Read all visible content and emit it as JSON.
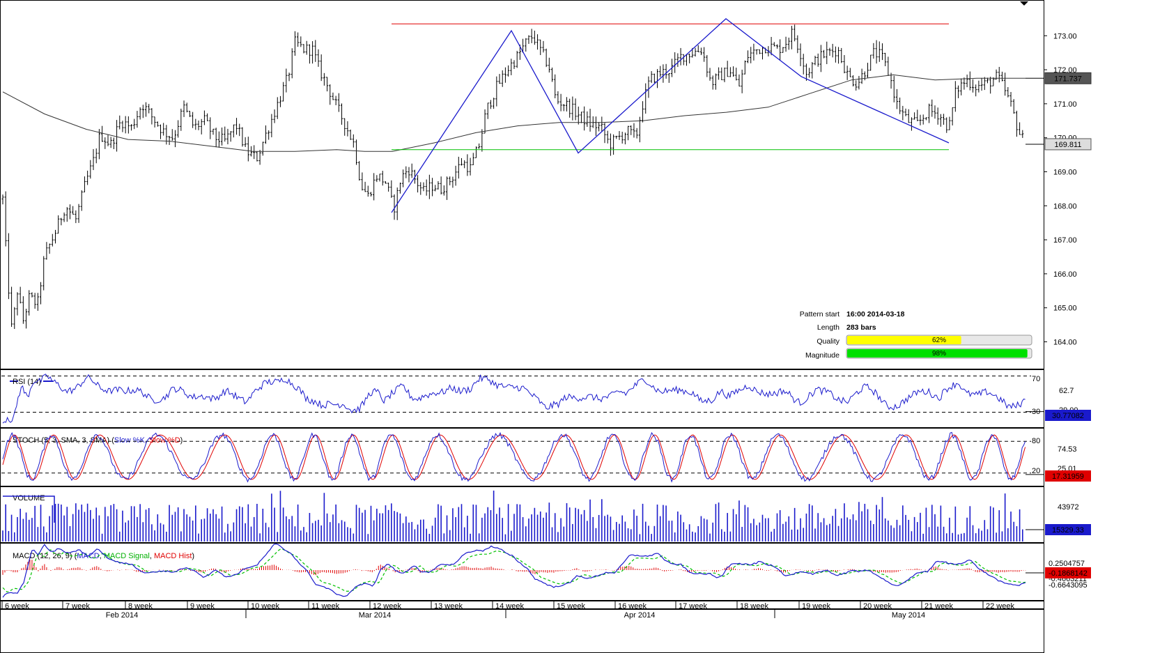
{
  "chart_data": {
    "type": "candlestick",
    "main": {
      "price_ylim": [
        163.6,
        173.6
      ],
      "y_ticks": [
        "173.00",
        "172.00",
        "171.00",
        "170.00",
        "169.00",
        "168.00",
        "167.00",
        "166.00",
        "165.00",
        "164.00"
      ],
      "current_price": "169.811",
      "ma_price": "171.737",
      "resistance_level": 173.35,
      "support_level": 169.65,
      "pattern_points": [
        {
          "bar": 0.0,
          "price": 167.8
        },
        {
          "bar": 0.215,
          "price": 173.15
        },
        {
          "bar": 0.335,
          "price": 169.55
        },
        {
          "bar": 0.6,
          "price": 173.5
        },
        {
          "bar": 0.735,
          "price": 171.8
        },
        {
          "bar": 1.0,
          "price": 169.85
        }
      ],
      "price_path": [
        [
          0,
          168.2
        ],
        [
          6,
          166.2
        ],
        [
          13,
          164.3
        ],
        [
          21,
          165.5
        ],
        [
          29,
          164.6
        ],
        [
          38,
          165.3
        ],
        [
          50,
          165.1
        ],
        [
          60,
          166.5
        ],
        [
          75,
          167.2
        ],
        [
          90,
          168.0
        ],
        [
          105,
          167.6
        ],
        [
          118,
          168.6
        ],
        [
          130,
          169.3
        ],
        [
          140,
          170.1
        ],
        [
          155,
          169.8
        ],
        [
          170,
          170.5
        ],
        [
          185,
          170.3
        ],
        [
          200,
          171.0
        ],
        [
          215,
          170.6
        ],
        [
          230,
          170.2
        ],
        [
          245,
          170.0
        ],
        [
          260,
          170.9
        ],
        [
          275,
          170.3
        ],
        [
          290,
          170.5
        ],
        [
          305,
          170.0
        ],
        [
          320,
          169.9
        ],
        [
          335,
          170.4
        ],
        [
          350,
          169.6
        ],
        [
          365,
          169.4
        ],
        [
          380,
          170.2
        ],
        [
          395,
          171.0
        ],
        [
          410,
          171.8
        ],
        [
          420,
          172.8
        ],
        [
          433,
          172.6
        ],
        [
          445,
          172.6
        ],
        [
          455,
          172.0
        ],
        [
          465,
          171.6
        ],
        [
          478,
          171.0
        ],
        [
          492,
          170.4
        ],
        [
          505,
          169.8
        ],
        [
          515,
          168.6
        ],
        [
          525,
          168.3
        ],
        [
          538,
          168.9
        ],
        [
          550,
          168.7
        ],
        [
          562,
          167.9
        ],
        [
          572,
          168.8
        ],
        [
          583,
          169.1
        ],
        [
          595,
          168.7
        ],
        [
          605,
          168.4
        ],
        [
          618,
          168.6
        ],
        [
          630,
          168.5
        ],
        [
          645,
          168.8
        ],
        [
          660,
          169.3
        ],
        [
          672,
          169.1
        ],
        [
          685,
          169.8
        ],
        [
          695,
          170.8
        ],
        [
          710,
          171.5
        ],
        [
          725,
          172.0
        ],
        [
          740,
          172.4
        ],
        [
          752,
          172.8
        ],
        [
          762,
          173.0
        ],
        [
          772,
          172.6
        ],
        [
          785,
          172.1
        ],
        [
          795,
          171.1
        ],
        [
          808,
          171.0
        ],
        [
          820,
          170.8
        ],
        [
          832,
          170.6
        ],
        [
          845,
          170.4
        ],
        [
          860,
          170.3
        ],
        [
          872,
          169.8
        ],
        [
          885,
          170.0
        ],
        [
          898,
          170.2
        ],
        [
          910,
          170.0
        ],
        [
          920,
          171.0
        ],
        [
          930,
          171.7
        ],
        [
          945,
          171.9
        ],
        [
          960,
          172.0
        ],
        [
          975,
          172.4
        ],
        [
          990,
          172.5
        ],
        [
          1005,
          172.6
        ],
        [
          1018,
          171.6
        ],
        [
          1030,
          171.8
        ],
        [
          1045,
          172.0
        ],
        [
          1058,
          171.5
        ],
        [
          1070,
          172.4
        ],
        [
          1085,
          172.6
        ],
        [
          1100,
          172.7
        ],
        [
          1115,
          172.6
        ],
        [
          1125,
          172.8
        ],
        [
          1135,
          173.1
        ],
        [
          1145,
          172.6
        ],
        [
          1155,
          171.9
        ],
        [
          1170,
          172.3
        ],
        [
          1185,
          172.5
        ],
        [
          1200,
          172.6
        ],
        [
          1215,
          171.8
        ],
        [
          1228,
          171.6
        ],
        [
          1240,
          172.0
        ],
        [
          1252,
          172.5
        ],
        [
          1263,
          172.4
        ],
        [
          1275,
          171.8
        ],
        [
          1285,
          171.0
        ],
        [
          1300,
          170.5
        ],
        [
          1315,
          170.4
        ],
        [
          1330,
          170.8
        ],
        [
          1345,
          170.7
        ],
        [
          1360,
          170.3
        ],
        [
          1370,
          171.4
        ],
        [
          1385,
          171.7
        ],
        [
          1400,
          171.5
        ],
        [
          1415,
          171.6
        ],
        [
          1430,
          171.8
        ],
        [
          1440,
          171.4
        ],
        [
          1450,
          170.9
        ],
        [
          1460,
          170.2
        ],
        [
          1470,
          169.8
        ]
      ],
      "ma_path": [
        [
          0,
          171.35
        ],
        [
          60,
          170.7
        ],
        [
          120,
          170.25
        ],
        [
          180,
          169.95
        ],
        [
          240,
          169.9
        ],
        [
          300,
          169.75
        ],
        [
          360,
          169.6
        ],
        [
          420,
          169.6
        ],
        [
          480,
          169.65
        ],
        [
          520,
          169.6
        ],
        [
          560,
          169.6
        ],
        [
          620,
          169.85
        ],
        [
          680,
          170.15
        ],
        [
          740,
          170.35
        ],
        [
          800,
          170.45
        ],
        [
          860,
          170.45
        ],
        [
          920,
          170.5
        ],
        [
          980,
          170.65
        ],
        [
          1040,
          170.75
        ],
        [
          1100,
          170.9
        ],
        [
          1160,
          171.3
        ],
        [
          1220,
          171.7
        ],
        [
          1280,
          171.85
        ],
        [
          1340,
          171.7
        ],
        [
          1400,
          171.75
        ],
        [
          1470,
          171.75
        ]
      ]
    },
    "info_panel": {
      "pattern_start_label": "Pattern start",
      "pattern_start_value": "16:00 2014-03-18",
      "length_label": "Length",
      "length_value": "283 bars",
      "quality_label": "Quality",
      "quality_pct": 62,
      "quality_text": "62%",
      "magnitude_label": "Magnitude",
      "magnitude_pct": 98,
      "magnitude_text": "98%"
    },
    "rsi": {
      "title": "RSI (14)",
      "ylim": [
        15,
        75
      ],
      "levels": [
        70,
        30
      ],
      "level_labels": [
        "70",
        "30"
      ],
      "right_label": "62.7",
      "right_label2": "29.00",
      "current": "30.77082"
    },
    "stoch": {
      "title_prefix": "STOCH (5, 3, SMA, 3, SMA) (",
      "k_label": "Slow %K",
      "sep": ", ",
      "d_label": "Slow %D",
      "title_suffix": ")",
      "ylim": [
        0,
        100
      ],
      "levels": [
        80,
        20
      ],
      "level_labels": [
        "80",
        "20"
      ],
      "right_label": "74.53",
      "right_label2": "25.01",
      "current": "17.31959"
    },
    "volume": {
      "title": "VOLUME",
      "right_label": "43972",
      "current": "15329.33"
    },
    "macd": {
      "title_prefix": "MACD (12, 26, 9) (",
      "macd_label": "MACD",
      "sep": ", ",
      "signal_label": "MACD Signal",
      "hist_label": "MACD Hist",
      "title_suffix": ")",
      "right_label": "0.2504757",
      "current": "-0.1868142",
      "right_label2": "-0.4663211",
      "right_label3": "-0.6643095"
    },
    "x_axis": {
      "weeks": [
        "6 week",
        "7 week",
        "8 week",
        "9 week",
        "10 week",
        "11 week",
        "12 week",
        "13 week",
        "14 week",
        "15 week",
        "16 week",
        "17 week",
        "18 week",
        "19 week",
        "20 week",
        "21 week",
        "22 week"
      ],
      "months": [
        "Feb 2014",
        "Mar 2014",
        "Apr 2014",
        "May 2014"
      ]
    }
  }
}
